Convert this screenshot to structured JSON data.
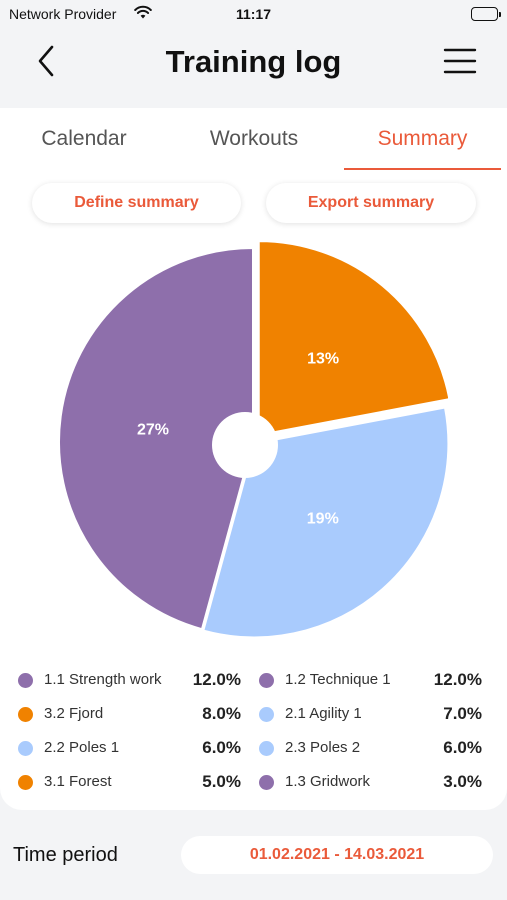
{
  "status_bar": {
    "carrier": "Network Provider",
    "time": "11:17"
  },
  "header": {
    "title": "Training log"
  },
  "tabs": [
    {
      "label": "Calendar",
      "active": false
    },
    {
      "label": "Workouts",
      "active": false
    },
    {
      "label": "Summary",
      "active": true
    }
  ],
  "actions": {
    "define_label": "Define summary",
    "export_label": "Export summary"
  },
  "colors": {
    "accent": "#ea5a3a",
    "purple": "#8e6fab",
    "orange": "#f08200",
    "lightblue": "#a9cbfd"
  },
  "chart_data": {
    "type": "pie",
    "donut_hole": true,
    "slices": [
      {
        "label": "13%",
        "value": 13,
        "color": "#f08200"
      },
      {
        "label": "19%",
        "value": 19,
        "color": "#a9cbfd"
      },
      {
        "label": "27%",
        "value": 27,
        "color": "#8e6fab"
      }
    ]
  },
  "legend": [
    {
      "name": "1.1 Strength work",
      "value": "12.0%",
      "color": "#8e6fab"
    },
    {
      "name": "1.2 Technique 1",
      "value": "12.0%",
      "color": "#8e6fab"
    },
    {
      "name": "3.2 Fjord",
      "value": "8.0%",
      "color": "#f08200"
    },
    {
      "name": "2.1 Agility 1",
      "value": "7.0%",
      "color": "#a9cbfd"
    },
    {
      "name": "2.2 Poles 1",
      "value": "6.0%",
      "color": "#a9cbfd"
    },
    {
      "name": "2.3 Poles 2",
      "value": "6.0%",
      "color": "#a9cbfd"
    },
    {
      "name": "3.1 Forest",
      "value": "5.0%",
      "color": "#f08200"
    },
    {
      "name": "1.3 Gridwork",
      "value": "3.0%",
      "color": "#8e6fab"
    }
  ],
  "time_period": {
    "label": "Time period",
    "value": "01.02.2021 - 14.03.2021"
  }
}
